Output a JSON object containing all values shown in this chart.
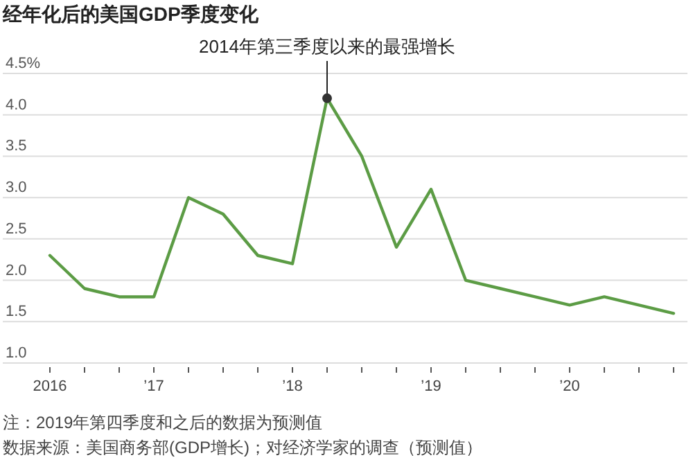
{
  "chart_data": {
    "type": "line",
    "title": "经年化后的美国GDP季度变化",
    "categories": [
      "2016",
      null,
      null,
      "’17",
      null,
      null,
      null,
      "’18",
      null,
      null,
      null,
      "’19",
      null,
      null,
      null,
      "’20",
      null,
      null,
      null
    ],
    "series": [
      {
        "color": "#5c9c45",
        "values": [
          2.3,
          1.9,
          1.8,
          1.8,
          3.0,
          2.8,
          2.3,
          2.2,
          4.2,
          3.5,
          2.4,
          3.1,
          2.0,
          1.9,
          1.8,
          1.7,
          1.8,
          1.7,
          1.6
        ]
      }
    ],
    "ylim": [
      1.0,
      4.5
    ],
    "yticks": [
      {
        "value": 1.0,
        "label": "1.0"
      },
      {
        "value": 1.5,
        "label": "1.5"
      },
      {
        "value": 2.0,
        "label": "2.0"
      },
      {
        "value": 2.5,
        "label": "2.5"
      },
      {
        "value": 3.0,
        "label": "3.0"
      },
      {
        "value": 3.5,
        "label": "3.5"
      },
      {
        "value": 4.0,
        "label": "4.0"
      },
      {
        "value": 4.5,
        "label": "4.5%"
      }
    ],
    "grid": "y",
    "annotations": [
      {
        "text": "2014年第三季度以来的最强增长",
        "y": 4.2
      },
      "注：2019年第四季度和之后的数据为预测值",
      "数据来源：美国商务部(GDP增长)；对经济学家的调查（预测值）"
    ]
  }
}
